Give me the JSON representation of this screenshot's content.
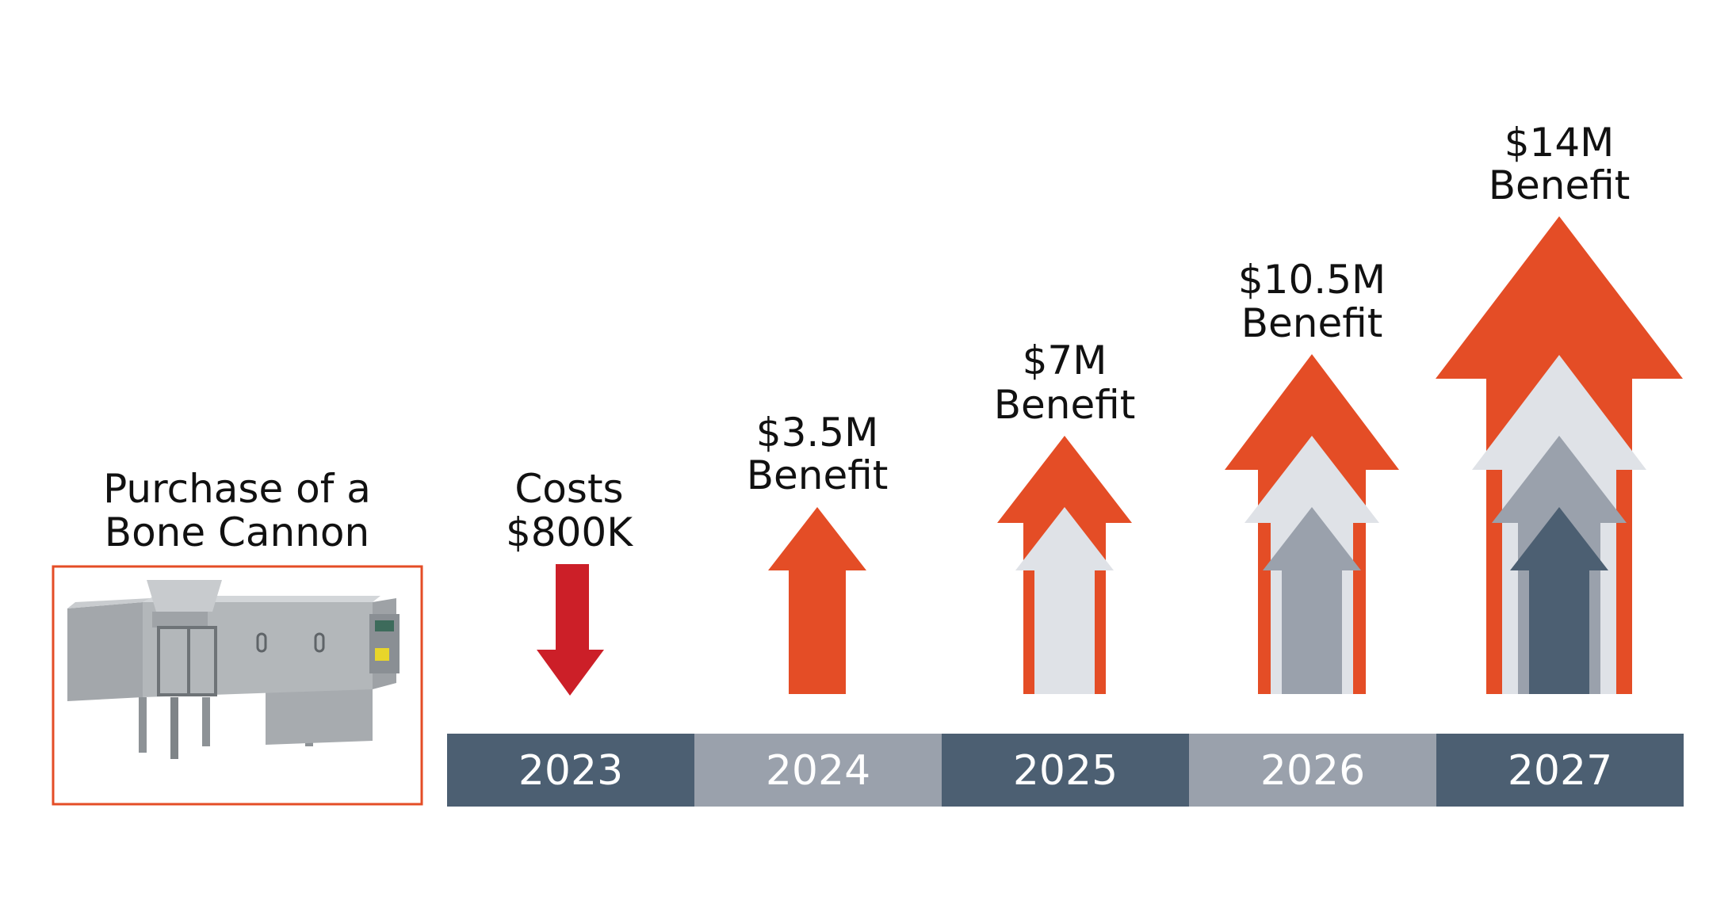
{
  "machine": {
    "caption_line1": "Purchase of a",
    "caption_line2": "Bone Cannon",
    "photo_name": "bone-cannon-machine"
  },
  "cost": {
    "line1": "Costs",
    "line2": "$800K",
    "direction": "down"
  },
  "benefits": [
    {
      "year": "2024",
      "line1": "$3.5M",
      "line2": "Benefit",
      "layers": 1
    },
    {
      "year": "2025",
      "line1": "$7M",
      "line2": "Benefit",
      "layers": 2
    },
    {
      "year": "2026",
      "line1": "$10.5M",
      "line2": "Benefit",
      "layers": 3
    },
    {
      "year": "2027",
      "line1": "$14M",
      "line2": "Benefit",
      "layers": 4
    }
  ],
  "timeline": {
    "years": [
      "2023",
      "2024",
      "2025",
      "2026",
      "2027"
    ]
  },
  "colors": {
    "cost_arrow": "#cc1f28",
    "benefit_orange": "#e44d26",
    "layer_light": "#dfe2e7",
    "layer_mid": "#9aa1ac",
    "layer_dark": "#4c5f72",
    "timeline_dark": "#4c5f72",
    "timeline_light": "#9aa1ac",
    "machine_border": "#e44d26"
  }
}
